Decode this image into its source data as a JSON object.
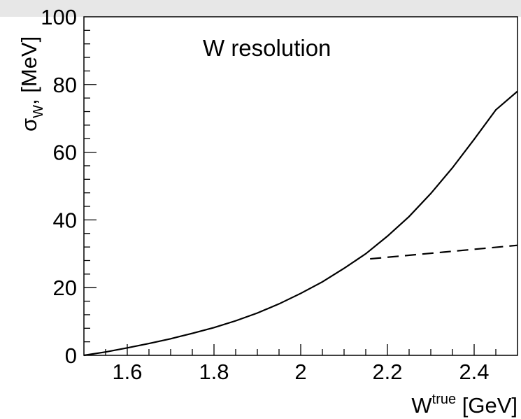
{
  "chart_data": {
    "type": "line",
    "title": "W resolution",
    "xlabel": {
      "base": "W",
      "sup": "true",
      "unit": " [GeV]"
    },
    "ylabel": {
      "sigma": "σ",
      "sub": "W",
      "unit": ", [MeV]"
    },
    "xlim": [
      1.5,
      2.5
    ],
    "ylim": [
      0,
      100
    ],
    "xticks": [
      1.6,
      1.8,
      2,
      2.2,
      2.4
    ],
    "xtick_labels": [
      "1.6",
      "1.8",
      "2",
      "2.2",
      "2.4"
    ],
    "yticks": [
      0,
      20,
      40,
      60,
      80,
      100
    ],
    "ytick_labels": [
      "0",
      "20",
      "40",
      "60",
      "80",
      "100"
    ],
    "grid": false,
    "series": [
      {
        "style": "solid",
        "x": [
          1.5,
          1.55,
          1.6,
          1.65,
          1.7,
          1.75,
          1.8,
          1.85,
          1.9,
          1.95,
          2.0,
          2.05,
          2.1,
          2.15,
          2.2,
          2.25,
          2.3,
          2.35,
          2.4,
          2.45,
          2.5
        ],
        "y": [
          0,
          1.0,
          2.2,
          3.5,
          4.9,
          6.5,
          8.2,
          10.2,
          12.5,
          15.2,
          18.3,
          21.7,
          25.7,
          30.0,
          35.2,
          41.0,
          47.8,
          55.4,
          63.8,
          72.5,
          78.0
        ]
      },
      {
        "style": "dashed",
        "x": [
          2.16,
          2.5
        ],
        "y": [
          28.5,
          32.5
        ]
      }
    ]
  }
}
